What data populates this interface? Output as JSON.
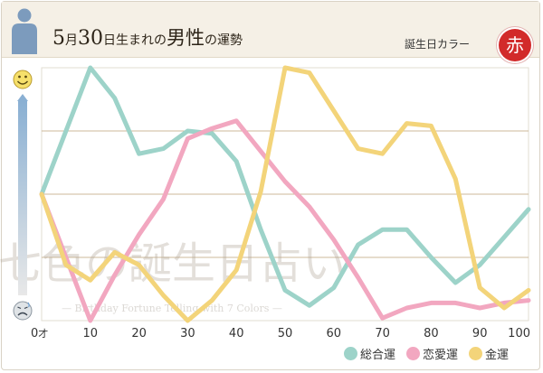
{
  "header": {
    "title_month_num": "5",
    "title_month_unit": "月",
    "title_day_num": "30",
    "title_day_unit": "日生まれの",
    "title_main": "男性",
    "title_particle": "の",
    "title_tail": "運勢",
    "lucky_label": "誕生日カラー",
    "lucky_color_char": "赤",
    "lucky_color_hex": "#d22a2a"
  },
  "watermark": {
    "main": "七色の誕生日占い",
    "sub": "— Birthday Fortune Telling with 7 Colors —"
  },
  "icons": {
    "top": "smiley-face-icon",
    "bottom": "worried-face-icon",
    "person": "male-silhouette-icon"
  },
  "colors": {
    "general": "#9dd3c9",
    "love": "#f2a7c0",
    "money": "#f3d47a",
    "gridline": "#cdb89a",
    "header_bg": "#f5f0e6"
  },
  "chart_data": {
    "type": "line",
    "x_unit": "才",
    "xlim": [
      0,
      100
    ],
    "ylim": [
      0,
      100
    ],
    "x_ticks": [
      0,
      10,
      20,
      30,
      40,
      50,
      60,
      70,
      80,
      90,
      100
    ],
    "grid": true,
    "legend_position": "bottom-right",
    "series": [
      {
        "name": "総合運",
        "color": "#9dd3c9",
        "points": [
          [
            0,
            50
          ],
          [
            10,
            100
          ],
          [
            15,
            88
          ],
          [
            20,
            66
          ],
          [
            25,
            68
          ],
          [
            30,
            75
          ],
          [
            35,
            74
          ],
          [
            40,
            63
          ],
          [
            45,
            36
          ],
          [
            50,
            12
          ],
          [
            55,
            6
          ],
          [
            60,
            13
          ],
          [
            65,
            30
          ],
          [
            70,
            36
          ],
          [
            75,
            36
          ],
          [
            80,
            25
          ],
          [
            85,
            15
          ],
          [
            90,
            22
          ],
          [
            95,
            33
          ],
          [
            100,
            44
          ]
        ]
      },
      {
        "name": "恋愛運",
        "color": "#f2a7c0",
        "points": [
          [
            0,
            50
          ],
          [
            5,
            25
          ],
          [
            10,
            0
          ],
          [
            15,
            18
          ],
          [
            20,
            34
          ],
          [
            25,
            48
          ],
          [
            30,
            72
          ],
          [
            35,
            76
          ],
          [
            40,
            79
          ],
          [
            45,
            67
          ],
          [
            50,
            55
          ],
          [
            55,
            45
          ],
          [
            60,
            32
          ],
          [
            65,
            17
          ],
          [
            70,
            1
          ],
          [
            75,
            5
          ],
          [
            80,
            7
          ],
          [
            85,
            7
          ],
          [
            90,
            5
          ],
          [
            95,
            7
          ],
          [
            100,
            8
          ]
        ]
      },
      {
        "name": "金運",
        "color": "#f3d47a",
        "points": [
          [
            0,
            50
          ],
          [
            5,
            22
          ],
          [
            10,
            16
          ],
          [
            15,
            27
          ],
          [
            20,
            22
          ],
          [
            25,
            10
          ],
          [
            30,
            0
          ],
          [
            35,
            8
          ],
          [
            40,
            20
          ],
          [
            45,
            51
          ],
          [
            50,
            100
          ],
          [
            55,
            98
          ],
          [
            60,
            83
          ],
          [
            65,
            68
          ],
          [
            70,
            66
          ],
          [
            75,
            78
          ],
          [
            80,
            77
          ],
          [
            85,
            56
          ],
          [
            90,
            13
          ],
          [
            95,
            5
          ],
          [
            100,
            12
          ]
        ]
      }
    ]
  }
}
